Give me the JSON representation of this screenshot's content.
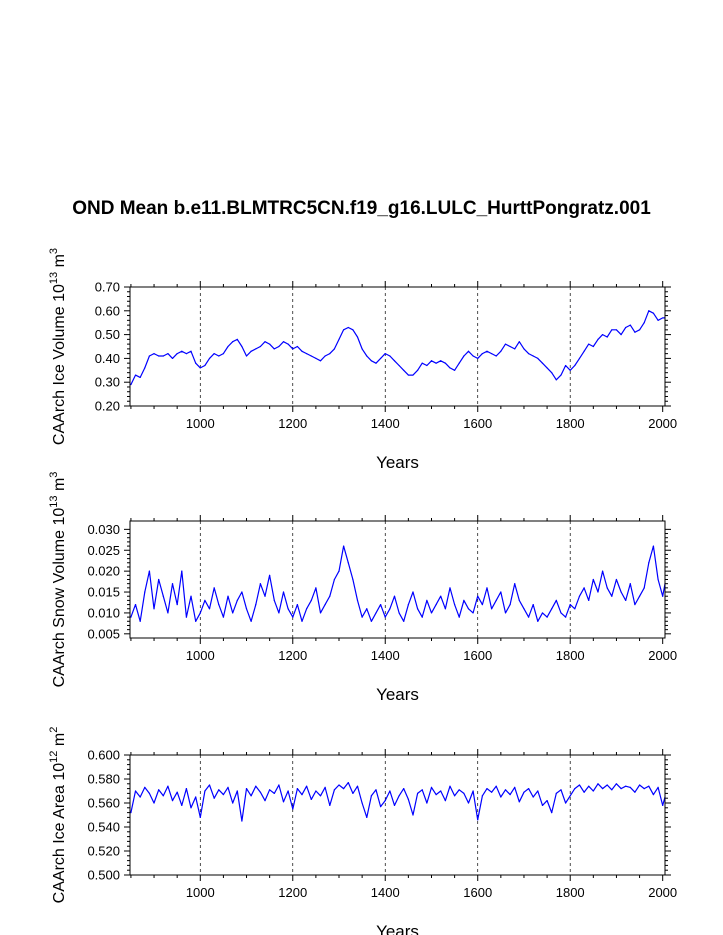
{
  "title": "OND Mean b.e11.BLMTRC5CN.f19_g16.LULC_HurttPongratz.001",
  "colors": {
    "line": "#0000ff",
    "axis": "#000000",
    "grid": "#000000"
  },
  "chart_data": [
    {
      "type": "line",
      "xlabel": "Years",
      "ylabel": "CAArch Ice Volume 10",
      "ylabel_exp": "13",
      "ylabel_unit": " m",
      "ylabel_unit_exp": "3",
      "xlim": [
        848,
        2005
      ],
      "ylim": [
        0.2,
        0.7
      ],
      "xticks": [
        1000,
        1200,
        1400,
        1600,
        1800,
        2000
      ],
      "yticks": [
        "0.20",
        "0.30",
        "0.40",
        "0.50",
        "0.60",
        "0.70"
      ],
      "grid_x": [
        1000,
        1200,
        1400,
        1600,
        1800
      ],
      "series": [
        {
          "name": "CAArch Ice Volume",
          "x": [
            850,
            860,
            870,
            880,
            890,
            900,
            910,
            920,
            930,
            940,
            950,
            960,
            970,
            980,
            990,
            1000,
            1010,
            1020,
            1030,
            1040,
            1050,
            1060,
            1070,
            1080,
            1090,
            1100,
            1110,
            1120,
            1130,
            1140,
            1150,
            1160,
            1170,
            1180,
            1190,
            1200,
            1210,
            1220,
            1230,
            1240,
            1250,
            1260,
            1270,
            1280,
            1290,
            1300,
            1310,
            1320,
            1330,
            1340,
            1350,
            1360,
            1370,
            1380,
            1390,
            1400,
            1410,
            1420,
            1430,
            1440,
            1450,
            1460,
            1470,
            1480,
            1490,
            1500,
            1510,
            1520,
            1530,
            1540,
            1550,
            1560,
            1570,
            1580,
            1590,
            1600,
            1610,
            1620,
            1630,
            1640,
            1650,
            1660,
            1670,
            1680,
            1690,
            1700,
            1710,
            1720,
            1730,
            1740,
            1750,
            1760,
            1770,
            1780,
            1790,
            1800,
            1810,
            1820,
            1830,
            1840,
            1850,
            1860,
            1870,
            1880,
            1890,
            1900,
            1910,
            1920,
            1930,
            1940,
            1950,
            1960,
            1970,
            1980,
            1990,
            2000,
            2005
          ],
          "y": [
            0.29,
            0.33,
            0.32,
            0.36,
            0.41,
            0.42,
            0.41,
            0.41,
            0.42,
            0.4,
            0.42,
            0.43,
            0.42,
            0.43,
            0.38,
            0.36,
            0.37,
            0.4,
            0.42,
            0.41,
            0.42,
            0.45,
            0.47,
            0.48,
            0.45,
            0.41,
            0.43,
            0.44,
            0.45,
            0.47,
            0.46,
            0.44,
            0.45,
            0.47,
            0.46,
            0.44,
            0.45,
            0.43,
            0.42,
            0.41,
            0.4,
            0.39,
            0.41,
            0.42,
            0.44,
            0.48,
            0.52,
            0.53,
            0.52,
            0.49,
            0.44,
            0.41,
            0.39,
            0.38,
            0.4,
            0.42,
            0.41,
            0.39,
            0.37,
            0.35,
            0.33,
            0.33,
            0.35,
            0.38,
            0.37,
            0.39,
            0.38,
            0.39,
            0.38,
            0.36,
            0.35,
            0.38,
            0.41,
            0.43,
            0.41,
            0.4,
            0.42,
            0.43,
            0.42,
            0.41,
            0.43,
            0.46,
            0.45,
            0.44,
            0.47,
            0.44,
            0.42,
            0.41,
            0.4,
            0.38,
            0.36,
            0.34,
            0.31,
            0.33,
            0.37,
            0.35,
            0.37,
            0.4,
            0.43,
            0.46,
            0.45,
            0.48,
            0.5,
            0.49,
            0.52,
            0.52,
            0.5,
            0.53,
            0.54,
            0.51,
            0.52,
            0.55,
            0.6,
            0.59,
            0.56,
            0.57,
            0.57
          ]
        }
      ]
    },
    {
      "type": "line",
      "xlabel": "Years",
      "ylabel": "CAArch Snow Volume 10",
      "ylabel_exp": "13",
      "ylabel_unit": " m",
      "ylabel_unit_exp": "3",
      "xlim": [
        848,
        2005
      ],
      "ylim": [
        0.004,
        0.032
      ],
      "xticks": [
        1000,
        1200,
        1400,
        1600,
        1800,
        2000
      ],
      "yticks": [
        "0.005",
        "0.010",
        "0.015",
        "0.020",
        "0.025",
        "0.030"
      ],
      "grid_x": [
        1000,
        1200,
        1400,
        1600,
        1800
      ],
      "series": [
        {
          "name": "CAArch Snow Volume",
          "x": [
            850,
            860,
            870,
            880,
            890,
            900,
            910,
            920,
            930,
            940,
            950,
            960,
            970,
            980,
            990,
            1000,
            1010,
            1020,
            1030,
            1040,
            1050,
            1060,
            1070,
            1080,
            1090,
            1100,
            1110,
            1120,
            1130,
            1140,
            1150,
            1160,
            1170,
            1180,
            1190,
            1200,
            1210,
            1220,
            1230,
            1240,
            1250,
            1260,
            1270,
            1280,
            1290,
            1300,
            1310,
            1320,
            1330,
            1340,
            1350,
            1360,
            1370,
            1380,
            1390,
            1400,
            1410,
            1420,
            1430,
            1440,
            1450,
            1460,
            1470,
            1480,
            1490,
            1500,
            1510,
            1520,
            1530,
            1540,
            1550,
            1560,
            1570,
            1580,
            1590,
            1600,
            1610,
            1620,
            1630,
            1640,
            1650,
            1660,
            1670,
            1680,
            1690,
            1700,
            1710,
            1720,
            1730,
            1740,
            1750,
            1760,
            1770,
            1780,
            1790,
            1800,
            1810,
            1820,
            1830,
            1840,
            1850,
            1860,
            1870,
            1880,
            1890,
            1900,
            1910,
            1920,
            1930,
            1940,
            1950,
            1960,
            1970,
            1980,
            1990,
            2000,
            2005
          ],
          "y": [
            0.009,
            0.012,
            0.008,
            0.015,
            0.02,
            0.011,
            0.018,
            0.014,
            0.01,
            0.017,
            0.012,
            0.02,
            0.009,
            0.014,
            0.008,
            0.01,
            0.013,
            0.011,
            0.016,
            0.012,
            0.009,
            0.014,
            0.01,
            0.013,
            0.015,
            0.011,
            0.008,
            0.012,
            0.017,
            0.014,
            0.019,
            0.013,
            0.01,
            0.015,
            0.011,
            0.009,
            0.012,
            0.008,
            0.011,
            0.013,
            0.016,
            0.01,
            0.012,
            0.014,
            0.018,
            0.02,
            0.026,
            0.022,
            0.018,
            0.013,
            0.009,
            0.011,
            0.008,
            0.01,
            0.012,
            0.009,
            0.011,
            0.014,
            0.01,
            0.008,
            0.012,
            0.015,
            0.011,
            0.009,
            0.013,
            0.01,
            0.012,
            0.014,
            0.011,
            0.016,
            0.012,
            0.009,
            0.013,
            0.011,
            0.01,
            0.014,
            0.012,
            0.016,
            0.011,
            0.013,
            0.015,
            0.01,
            0.012,
            0.017,
            0.013,
            0.011,
            0.009,
            0.012,
            0.008,
            0.01,
            0.009,
            0.011,
            0.013,
            0.01,
            0.009,
            0.012,
            0.011,
            0.014,
            0.016,
            0.013,
            0.018,
            0.015,
            0.02,
            0.016,
            0.014,
            0.018,
            0.015,
            0.013,
            0.017,
            0.012,
            0.014,
            0.016,
            0.022,
            0.026,
            0.018,
            0.014,
            0.017
          ]
        }
      ]
    },
    {
      "type": "line",
      "xlabel": "Years",
      "ylabel": "CAArch Ice Area 10",
      "ylabel_exp": "12",
      "ylabel_unit": " m",
      "ylabel_unit_exp": "2",
      "xlim": [
        848,
        2005
      ],
      "ylim": [
        0.5,
        0.6
      ],
      "xticks": [
        1000,
        1200,
        1400,
        1600,
        1800,
        2000
      ],
      "yticks": [
        "0.500",
        "0.520",
        "0.540",
        "0.560",
        "0.580",
        "0.600"
      ],
      "grid_x": [
        1000,
        1200,
        1400,
        1600,
        1800
      ],
      "series": [
        {
          "name": "CAArch Ice Area",
          "x": [
            850,
            860,
            870,
            880,
            890,
            900,
            910,
            920,
            930,
            940,
            950,
            960,
            970,
            980,
            990,
            1000,
            1010,
            1020,
            1030,
            1040,
            1050,
            1060,
            1070,
            1080,
            1090,
            1100,
            1110,
            1120,
            1130,
            1140,
            1150,
            1160,
            1170,
            1180,
            1190,
            1200,
            1210,
            1220,
            1230,
            1240,
            1250,
            1260,
            1270,
            1280,
            1290,
            1300,
            1310,
            1320,
            1330,
            1340,
            1350,
            1360,
            1370,
            1380,
            1390,
            1400,
            1410,
            1420,
            1430,
            1440,
            1450,
            1460,
            1470,
            1480,
            1490,
            1500,
            1510,
            1520,
            1530,
            1540,
            1550,
            1560,
            1570,
            1580,
            1590,
            1600,
            1610,
            1620,
            1630,
            1640,
            1650,
            1660,
            1670,
            1680,
            1690,
            1700,
            1710,
            1720,
            1730,
            1740,
            1750,
            1760,
            1770,
            1780,
            1790,
            1800,
            1810,
            1820,
            1830,
            1840,
            1850,
            1860,
            1870,
            1880,
            1890,
            1900,
            1910,
            1920,
            1930,
            1940,
            1950,
            1960,
            1970,
            1980,
            1990,
            2000,
            2005
          ],
          "y": [
            0.552,
            0.57,
            0.565,
            0.573,
            0.568,
            0.56,
            0.571,
            0.566,
            0.574,
            0.562,
            0.569,
            0.558,
            0.572,
            0.556,
            0.565,
            0.548,
            0.57,
            0.575,
            0.564,
            0.571,
            0.567,
            0.573,
            0.56,
            0.57,
            0.545,
            0.572,
            0.566,
            0.574,
            0.569,
            0.562,
            0.571,
            0.568,
            0.575,
            0.561,
            0.57,
            0.555,
            0.572,
            0.567,
            0.574,
            0.563,
            0.57,
            0.566,
            0.573,
            0.558,
            0.571,
            0.575,
            0.572,
            0.577,
            0.568,
            0.574,
            0.56,
            0.548,
            0.566,
            0.571,
            0.557,
            0.562,
            0.57,
            0.558,
            0.566,
            0.572,
            0.563,
            0.55,
            0.568,
            0.571,
            0.56,
            0.573,
            0.567,
            0.57,
            0.562,
            0.574,
            0.566,
            0.571,
            0.568,
            0.56,
            0.57,
            0.546,
            0.566,
            0.572,
            0.569,
            0.574,
            0.565,
            0.571,
            0.567,
            0.573,
            0.561,
            0.569,
            0.572,
            0.565,
            0.57,
            0.558,
            0.562,
            0.552,
            0.568,
            0.571,
            0.56,
            0.566,
            0.572,
            0.575,
            0.569,
            0.574,
            0.57,
            0.576,
            0.572,
            0.575,
            0.571,
            0.576,
            0.572,
            0.574,
            0.573,
            0.569,
            0.575,
            0.572,
            0.574,
            0.567,
            0.573,
            0.558,
            0.565
          ]
        }
      ]
    }
  ]
}
